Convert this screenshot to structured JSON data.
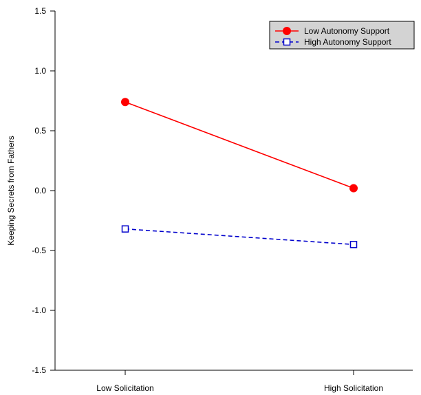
{
  "chart_data": {
    "type": "line",
    "title": "",
    "xlabel": "",
    "ylabel": "Keeping Secrets from Fathers",
    "categories": [
      "Low Solicitation",
      "High Solicitation"
    ],
    "ylim": [
      -1.5,
      1.5
    ],
    "yticks": [
      -1.5,
      -1.0,
      -0.5,
      0.0,
      0.5,
      1.0,
      1.5
    ],
    "ytick_labels": [
      "-1.5",
      "-1.0",
      "-0.5",
      "0.0",
      "0.5",
      "1.0",
      "1.5"
    ],
    "grid": false,
    "legend_position": "top-right",
    "series": [
      {
        "name": "Low Autonomy Support",
        "values": [
          0.74,
          0.02
        ],
        "color": "#ff0000",
        "line_style": "solid",
        "marker": "filled-circle"
      },
      {
        "name": "High Autonomy Support",
        "values": [
          -0.32,
          -0.45
        ],
        "color": "#0000cc",
        "line_style": "dashed",
        "marker": "open-square"
      }
    ]
  }
}
